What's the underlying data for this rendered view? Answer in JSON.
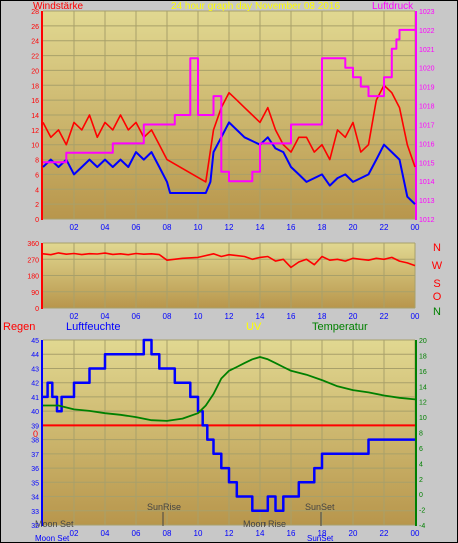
{
  "header": {
    "left_title": "Windstärke",
    "center_title": "24 hour graph day   November 08 2016",
    "right_title": "Luftdruck"
  },
  "colors": {
    "frame": "#000000",
    "plot_bg_top": "#e1d891",
    "plot_bg_bottom": "#b8964c",
    "grid": "#a8a06a",
    "wind_gust": "#ff0000",
    "wind_avg": "#0000ff",
    "pressure": "#ff00ff",
    "direction": "#ff0000",
    "humidity": "#0000ff",
    "temperature": "#008000",
    "rain": "#ff0000",
    "uv": "#ffff00",
    "left_axis_red": "#ff0000",
    "right_axis_magenta": "#ff00ff",
    "right_axis_green": "#008000",
    "left_axis_blue": "#0000ff",
    "astro": "#444444"
  },
  "compass_labels": [
    "N",
    "W",
    "S",
    "O",
    "N"
  ],
  "bottom_titles": {
    "rain": "Regen",
    "humidity": "Luftfeuchte",
    "uv": "UV",
    "temperature": "Temperatur"
  },
  "astro": {
    "moonset": "Moon Set",
    "sunrise": "SunRise",
    "moonrise": "Moon Rise",
    "sunset": "SunSet",
    "bottom_moonset": "Moon Set",
    "bottom_sunset": "SunSet"
  },
  "chart_data": [
    {
      "type": "line",
      "title": "Windstärke / Luftdruck",
      "x_ticks": [
        "02",
        "04",
        "06",
        "08",
        "10",
        "12",
        "14",
        "16",
        "18",
        "20",
        "22",
        "00"
      ],
      "xlim": [
        0,
        24
      ],
      "ylim_left": [
        0,
        28
      ],
      "y_ticks_left": [
        0,
        2,
        4,
        6,
        8,
        10,
        12,
        14,
        16,
        18,
        20,
        22,
        24,
        26,
        28
      ],
      "ylim_right": [
        1012,
        1023
      ],
      "y_ticks_right": [
        1012,
        1013,
        1014,
        1015,
        1016,
        1017,
        1018,
        1019,
        1020,
        1021,
        1022,
        1023
      ],
      "series": [
        {
          "name": "Windböen",
          "axis": "left",
          "x": [
            0,
            0.5,
            1,
            1.5,
            2,
            2.5,
            3,
            3.5,
            4,
            4.5,
            5,
            5.5,
            6,
            6.5,
            7,
            7.5,
            8,
            10.5,
            11,
            11.5,
            12,
            12.5,
            13,
            13.5,
            14,
            14.5,
            15,
            15.5,
            16,
            16.5,
            17,
            17.5,
            18,
            18.5,
            19,
            19.5,
            20,
            20.5,
            21,
            21.5,
            22,
            22.5,
            23,
            23.5,
            24
          ],
          "y": [
            13,
            11,
            12,
            10,
            13,
            12,
            14,
            11,
            13,
            12,
            14,
            12,
            13,
            11,
            12,
            10,
            8,
            5,
            12,
            15,
            17,
            16,
            15,
            14,
            13,
            15,
            12,
            10,
            9,
            11,
            11,
            9,
            10,
            8,
            12,
            11,
            13,
            9,
            10,
            16,
            18,
            17,
            15,
            10,
            7
          ]
        },
        {
          "name": "Windmittel",
          "axis": "left",
          "x": [
            0,
            0.5,
            1,
            1.5,
            2,
            2.5,
            3,
            3.5,
            4,
            4.5,
            5,
            5.5,
            6,
            6.5,
            7,
            7.5,
            8,
            8.2,
            10.5,
            10.8,
            11,
            11.5,
            12,
            12.5,
            13,
            13.5,
            14,
            14.5,
            15,
            15.5,
            16,
            16.5,
            17,
            17.5,
            18,
            18.5,
            19,
            19.5,
            20,
            20.5,
            21,
            21.5,
            22,
            22.5,
            23,
            23.5,
            24
          ],
          "y": [
            7,
            8,
            7,
            8,
            6,
            7,
            8,
            7,
            8,
            7,
            8,
            7,
            9,
            8,
            9,
            7,
            5,
            3.5,
            3.5,
            5,
            9,
            11,
            13,
            12,
            11,
            10.5,
            10,
            11,
            9.5,
            9,
            7,
            6,
            5,
            5.5,
            6,
            4.5,
            5.5,
            6,
            5,
            5.5,
            6,
            8,
            10,
            9,
            8,
            3,
            2
          ]
        },
        {
          "name": "Luftdruck",
          "axis": "right",
          "x": [
            0,
            1,
            1.5,
            2,
            3,
            4,
            4.5,
            5,
            6.5,
            7,
            8,
            8.5,
            9.5,
            10,
            10.5,
            11,
            11.5,
            12,
            12.5,
            13.2,
            13.5,
            14,
            15,
            16,
            17,
            18,
            18.5,
            19,
            19.5,
            20,
            20.5,
            21,
            22,
            22.5,
            22.8,
            23,
            23.5,
            24
          ],
          "y": [
            1015,
            1015,
            1015.5,
            1015.5,
            1015.5,
            1015.5,
            1016,
            1016,
            1017,
            1017,
            1017,
            1017.5,
            1020.5,
            1017.5,
            1017.5,
            1018.5,
            1014.5,
            1014,
            1014,
            1014,
            1014.5,
            1016,
            1016,
            1017,
            1017,
            1020.5,
            1020.5,
            1020.5,
            1020,
            1019.5,
            1019,
            1018.5,
            1019.5,
            1021,
            1021.5,
            1022,
            1022,
            1022
          ]
        }
      ]
    },
    {
      "type": "line",
      "title": "Windrichtung",
      "x_ticks": [
        "02",
        "04",
        "06",
        "08",
        "10",
        "12",
        "14",
        "16",
        "18",
        "20",
        "22",
        "00"
      ],
      "xlim": [
        0,
        24
      ],
      "ylim": [
        0,
        360
      ],
      "y_ticks": [
        0,
        90,
        180,
        270,
        360
      ],
      "series": [
        {
          "name": "Windrichtung",
          "x": [
            0,
            0.5,
            1,
            1.5,
            2,
            2.5,
            3,
            3.5,
            4,
            4.5,
            5,
            5.5,
            6,
            6.5,
            7,
            7.5,
            8,
            9,
            10,
            11,
            11.5,
            12,
            12.5,
            13,
            13.5,
            14,
            14.5,
            15,
            15.5,
            16,
            16.5,
            17,
            17.5,
            18,
            18.5,
            19,
            19.5,
            20,
            20.5,
            21,
            21.5,
            22,
            22.5,
            23,
            23.5,
            24
          ],
          "y": [
            300,
            295,
            305,
            298,
            302,
            296,
            301,
            299,
            304,
            297,
            300,
            295,
            302,
            298,
            300,
            296,
            265,
            275,
            280,
            300,
            285,
            295,
            290,
            285,
            270,
            280,
            285,
            260,
            270,
            225,
            255,
            270,
            240,
            285,
            265,
            270,
            260,
            275,
            270,
            265,
            275,
            270,
            280,
            260,
            250,
            235
          ]
        }
      ]
    },
    {
      "type": "line",
      "title": "Regen / Luftfeuchte / UV / Temperatur",
      "x_ticks": [
        "02",
        "04",
        "06",
        "08",
        "10",
        "12",
        "14",
        "16",
        "18",
        "20",
        "22",
        "00"
      ],
      "xlim": [
        0,
        24
      ],
      "ylim_left": [
        32,
        45
      ],
      "y_ticks_left": [
        32,
        33,
        34,
        35,
        36,
        37,
        38,
        39,
        40,
        41,
        42,
        43,
        44,
        45
      ],
      "ylim_right": [
        -4,
        20
      ],
      "y_ticks_right": [
        -4,
        -2,
        0,
        2,
        4,
        6,
        8,
        10,
        12,
        14,
        16,
        18,
        20
      ],
      "rain_zero_label": "0",
      "series": [
        {
          "name": "Luftfeuchte",
          "axis": "left",
          "x": [
            0,
            0.3,
            0.6,
            0.9,
            1.2,
            1.5,
            2,
            2.5,
            3,
            3.5,
            4,
            4.5,
            5,
            5.5,
            6,
            6.5,
            7,
            7.5,
            8,
            8.5,
            9,
            9.5,
            10,
            10.3,
            10.6,
            11,
            11.5,
            12,
            12.5,
            13,
            13.5,
            14,
            14.5,
            15,
            15.5,
            16,
            16.5,
            17,
            17.5,
            18,
            19,
            20,
            21,
            22,
            23,
            24
          ],
          "y": [
            41,
            42,
            41,
            40,
            41,
            41,
            42,
            42,
            43,
            43,
            44,
            44,
            44,
            44,
            44,
            45,
            44,
            43,
            43,
            42,
            42,
            41,
            40,
            39,
            38,
            37,
            36,
            35,
            34,
            34,
            33,
            33,
            34,
            33,
            34,
            34,
            35,
            35,
            36,
            37,
            37,
            37,
            38,
            38,
            38,
            38
          ]
        },
        {
          "name": "Temperatur",
          "axis": "right",
          "x": [
            0,
            1,
            2,
            3,
            4,
            5,
            6,
            7,
            8,
            9,
            10,
            10.5,
            11,
            11.5,
            12,
            12.5,
            13,
            13.5,
            14,
            14.5,
            15,
            15.5,
            16,
            17,
            18,
            19,
            20,
            21,
            22,
            23,
            24
          ],
          "y": [
            11.5,
            11.5,
            11,
            10.8,
            10.5,
            10.3,
            10,
            9.6,
            9.5,
            9.8,
            10.5,
            11.5,
            13,
            15,
            16,
            16.5,
            17,
            17.5,
            17.8,
            17.5,
            17,
            16.5,
            16,
            15.5,
            14.8,
            14,
            13.5,
            13.2,
            12.8,
            12.5,
            12.3
          ]
        },
        {
          "name": "Regen",
          "axis": "rain",
          "x": [
            0,
            24
          ],
          "y": [
            0,
            0
          ]
        }
      ]
    }
  ]
}
